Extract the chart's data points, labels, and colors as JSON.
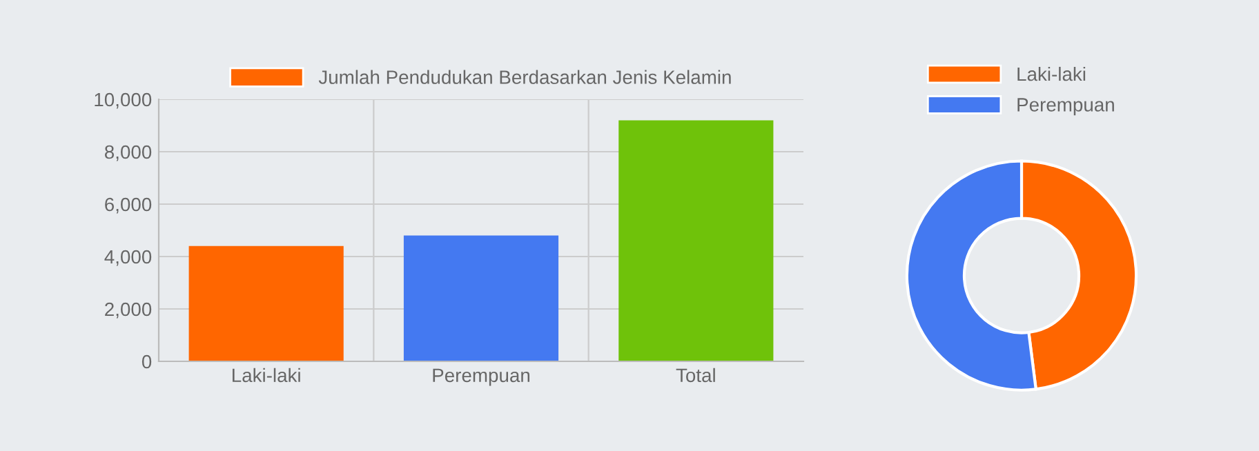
{
  "chart_data": [
    {
      "type": "bar",
      "categories": [
        "Laki-laki",
        "Perempuan",
        "Total"
      ],
      "series": [
        {
          "name": "Jumlah Pendudukan Berdasarkan Jenis Kelamin",
          "colors": [
            "#ff6600",
            "#4479f1",
            "#6fc20a"
          ],
          "values": [
            4400,
            4800,
            9200
          ]
        }
      ],
      "ylim": [
        0,
        10000
      ],
      "yticks": [
        {
          "value": 0,
          "label": "0"
        },
        {
          "value": 2000,
          "label": "2,000"
        },
        {
          "value": 4000,
          "label": "4,000"
        },
        {
          "value": 6000,
          "label": "6,000"
        },
        {
          "value": 8000,
          "label": "8,000"
        },
        {
          "value": 10000,
          "label": "10,000"
        }
      ],
      "grid": true,
      "legend": "top"
    },
    {
      "type": "donut",
      "categories": [
        "Laki-laki",
        "Perempuan"
      ],
      "values": [
        48,
        52
      ],
      "colors": [
        "#ff6600",
        "#4479f1"
      ],
      "legend": "top"
    }
  ]
}
